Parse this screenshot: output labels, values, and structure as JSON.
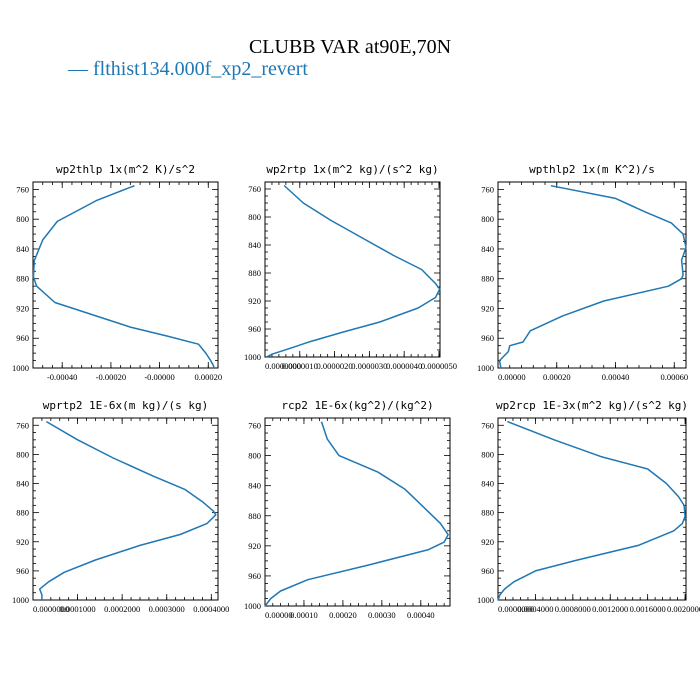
{
  "title": "CLUBB VAR at90E,70N",
  "legend_label": "— flthist134.000f_xp2_revert",
  "line_color": "#1f77b4",
  "chart_data": [
    {
      "type": "line",
      "title": "wp2thlp  1x(m^2 K)/s^2",
      "ylim": [
        1000,
        750
      ],
      "y_reversed": true,
      "xlim": [
        -0.00052,
        0.00024
      ],
      "yticks": [
        760,
        800,
        840,
        880,
        920,
        960,
        1000
      ],
      "xticks": [
        {
          "v": -0.0004,
          "label": "-0.00040"
        },
        {
          "v": -0.0002,
          "label": "-0.00020"
        },
        {
          "v": 0.0,
          "label": "-0.00000"
        },
        {
          "v": 0.0002,
          "label": "0.00020"
        }
      ],
      "series": [
        {
          "y": [
            755,
            775,
            803,
            828,
            856,
            878,
            890,
            912,
            945,
            957,
            968,
            980,
            990,
            996,
            1000
          ],
          "x": [
            -0.000103,
            -0.00026,
            -0.00042,
            -0.00048,
            -0.000515,
            -0.000518,
            -0.000505,
            -0.00043,
            -0.00012,
            3e-05,
            0.00016,
            0.00019,
            0.00021,
            0.00022,
            0.000225
          ]
        }
      ]
    },
    {
      "type": "line",
      "title": "wp2rtp  1x(m^2 kg)/(s^2 kg)",
      "ylim": [
        1000,
        750
      ],
      "y_reversed": true,
      "xlim": [
        0.0,
        5.03e-06
      ],
      "yticks": [
        760,
        800,
        840,
        880,
        920,
        960,
        1000
      ],
      "xticks": [
        {
          "v": 0.0,
          "label": "0.0000000"
        },
        {
          "v": 1e-06,
          "label": "0.0000010"
        },
        {
          "v": 2e-06,
          "label": "0.0000020"
        },
        {
          "v": 3e-06,
          "label": "0.0000030"
        },
        {
          "v": 4e-06,
          "label": "0.0000040"
        },
        {
          "v": 5e-06,
          "label": "0.0000050"
        }
      ],
      "series": [
        {
          "y": [
            755,
            780,
            805,
            830,
            855,
            875,
            895,
            903,
            915,
            930,
            950,
            965,
            978,
            988,
            996,
            1000
          ],
          "x": [
            5.5e-07,
            1.1e-06,
            1.9e-06,
            2.8e-06,
            3.7e-06,
            4.5e-06,
            4.9e-06,
            5.02e-06,
            4.9e-06,
            4.4e-06,
            3.3e-06,
            2.2e-06,
            1.3e-06,
            7e-07,
            2e-07,
            5e-08
          ]
        }
      ]
    },
    {
      "type": "line",
      "title": "wpthlp2  1x(m K^2)/s",
      "ylim": [
        1000,
        750
      ],
      "y_reversed": true,
      "xlim": [
        0.0,
        0.00064
      ],
      "yticks": [
        760,
        800,
        840,
        880,
        920,
        960,
        1000
      ],
      "xticks": [
        {
          "v": 0.0,
          "label": "0.00000"
        },
        {
          "v": 0.0002,
          "label": "0.00020"
        },
        {
          "v": 0.0004,
          "label": "0.00040"
        },
        {
          "v": 0.0006,
          "label": "0.00060"
        }
      ],
      "series": [
        {
          "y": [
            755,
            772,
            790,
            805,
            820,
            838,
            855,
            875,
            880,
            890,
            910,
            930,
            950,
            965,
            970,
            978,
            990,
            1000
          ],
          "x": [
            0.00018,
            0.0004,
            0.0005,
            0.00059,
            0.00063,
            0.00064,
            0.000625,
            0.00063,
            0.000625,
            0.00058,
            0.00036,
            0.00022,
            0.00011,
            8.5e-05,
            4e-05,
            3.5e-05,
            5e-06,
            1e-05
          ]
        }
      ]
    },
    {
      "type": "line",
      "title": "wprtp2  1E-6x(m kg)/(s kg)",
      "ylim": [
        1000,
        750
      ],
      "y_reversed": true,
      "xlim": [
        0.0,
        0.000415
      ],
      "yticks": [
        760,
        800,
        840,
        880,
        920,
        960,
        1000
      ],
      "xticks": [
        {
          "v": 0.0,
          "label": "0.0000000"
        },
        {
          "v": 0.0001,
          "label": "0.0001000"
        },
        {
          "v": 0.0002,
          "label": "0.0002000"
        },
        {
          "v": 0.0003,
          "label": "0.0003000"
        },
        {
          "v": 0.0004,
          "label": "0.0004000"
        }
      ],
      "series": [
        {
          "y": [
            755,
            780,
            805,
            830,
            848,
            865,
            878,
            883,
            895,
            910,
            925,
            945,
            962,
            975,
            985,
            993,
            1000
          ],
          "x": [
            3e-05,
            0.0001,
            0.00018,
            0.00027,
            0.00034,
            0.00038,
            0.000405,
            0.00041,
            0.00039,
            0.00033,
            0.00024,
            0.00014,
            7e-05,
            3.5e-05,
            1.5e-05,
            2e-05,
            2e-05
          ]
        }
      ]
    },
    {
      "type": "line",
      "title": "rcp2  1E-6x(kg^2)/(kg^2)",
      "ylim": [
        1000,
        750
      ],
      "y_reversed": true,
      "xlim": [
        0.0,
        0.000475
      ],
      "yticks": [
        760,
        800,
        840,
        880,
        920,
        960,
        1000
      ],
      "xticks": [
        {
          "v": 0.0,
          "label": "0.00000"
        },
        {
          "v": 0.0001,
          "label": "0.00010"
        },
        {
          "v": 0.0002,
          "label": "0.00020"
        },
        {
          "v": 0.0003,
          "label": "0.00030"
        },
        {
          "v": 0.0004,
          "label": "0.00040"
        }
      ],
      "series": [
        {
          "y": [
            755,
            778,
            800,
            822,
            845,
            870,
            890,
            905,
            915,
            925,
            945,
            965,
            980,
            990,
            1000
          ],
          "x": [
            0.000145,
            0.00016,
            0.00019,
            0.00029,
            0.00036,
            0.00041,
            0.00045,
            0.00047,
            0.00046,
            0.00042,
            0.00027,
            0.00011,
            4e-05,
            1.5e-05,
            0.0
          ]
        }
      ]
    },
    {
      "type": "line",
      "title": "wp2rcp  1E-3x(m^2 kg)/(s^2 kg)",
      "ylim": [
        1000,
        750
      ],
      "y_reversed": true,
      "xlim": [
        0.0,
        0.00201
      ],
      "yticks": [
        760,
        800,
        840,
        880,
        920,
        960,
        1000
      ],
      "xticks": [
        {
          "v": 0.0,
          "label": "0.0000000"
        },
        {
          "v": 0.0004,
          "label": "0.0004000"
        },
        {
          "v": 0.0008,
          "label": "0.0008000"
        },
        {
          "v": 0.0012,
          "label": "0.0012000"
        },
        {
          "v": 0.0016,
          "label": "0.0016000"
        },
        {
          "v": 0.002,
          "label": "0.0020000"
        }
      ],
      "series": [
        {
          "y": [
            755,
            780,
            803,
            820,
            840,
            858,
            870,
            885,
            895,
            905,
            925,
            945,
            960,
            975,
            985,
            993,
            1000
          ],
          "x": [
            0.0001,
            0.0006,
            0.0011,
            0.0016,
            0.0018,
            0.00193,
            0.00199,
            0.002,
            0.00197,
            0.00188,
            0.0015,
            0.00085,
            0.0004,
            0.00017,
            7e-05,
            2e-05,
            0.0
          ]
        }
      ]
    }
  ]
}
